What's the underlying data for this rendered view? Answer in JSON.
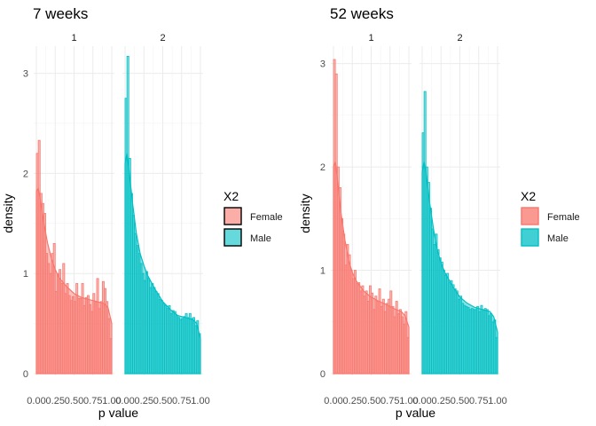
{
  "chart_data": [
    {
      "type": "histogram",
      "title": "7 weeks",
      "xlabel": "p value",
      "ylabel": "density",
      "facets": [
        "1",
        "2"
      ],
      "xlim": [
        0,
        1
      ],
      "ylim": [
        0,
        3.2
      ],
      "xticks": [
        "0.00",
        "0.25",
        "0.50",
        "0.75",
        "1.00"
      ],
      "yticks": [
        "0",
        "1",
        "2",
        "3"
      ],
      "legend": {
        "title": "X2",
        "entries": [
          "Female",
          "Male"
        ],
        "position": "right"
      },
      "series": [
        {
          "facet": "1",
          "name": "Female",
          "color": "#F8766D",
          "bin_width": 0.025,
          "bar_heights": [
            2.2,
            2.33,
            1.8,
            1.7,
            1.6,
            1.2,
            1.1,
            1.0,
            1.2,
            1.3,
            0.82,
            1.0,
            1.04,
            0.9,
            1.1,
            0.8,
            0.9,
            0.78,
            0.73,
            0.77,
            0.72,
            0.9,
            0.75,
            0.75,
            0.9,
            0.68,
            0.76,
            0.78,
            0.69,
            0.62,
            0.8,
            0.72,
            0.95,
            0.65,
            0.72,
            0.92,
            0.85,
            0.72,
            0.55,
            0.35
          ],
          "density_curve": {
            "x": [
              0,
              0.025,
              0.05,
              0.1,
              0.15,
              0.2,
              0.25,
              0.3,
              0.4,
              0.5,
              0.6,
              0.7,
              0.8,
              0.9,
              0.95,
              1.0
            ],
            "y": [
              1.82,
              1.85,
              1.75,
              1.5,
              1.3,
              1.15,
              1.04,
              0.96,
              0.87,
              0.8,
              0.76,
              0.74,
              0.72,
              0.7,
              0.66,
              0.5
            ]
          }
        },
        {
          "facet": "2",
          "name": "Male",
          "color": "#00BFC4",
          "bin_width": 0.025,
          "bar_heights": [
            2.75,
            3.17,
            2.15,
            1.8,
            1.58,
            1.4,
            1.28,
            1.2,
            1.1,
            1.0,
            0.93,
            1.02,
            0.95,
            0.86,
            0.9,
            0.86,
            0.82,
            0.8,
            0.74,
            0.73,
            0.7,
            0.68,
            0.65,
            0.68,
            0.6,
            0.63,
            0.62,
            0.58,
            0.56,
            0.54,
            0.55,
            0.57,
            0.6,
            0.56,
            0.6,
            0.55,
            0.56,
            0.48,
            0.53,
            0.4
          ],
          "density_curve": {
            "x": [
              0,
              0.025,
              0.05,
              0.1,
              0.15,
              0.2,
              0.25,
              0.3,
              0.4,
              0.5,
              0.6,
              0.7,
              0.8,
              0.9,
              0.95,
              1.0
            ],
            "y": [
              2.1,
              2.2,
              2.05,
              1.7,
              1.4,
              1.2,
              1.08,
              0.98,
              0.84,
              0.72,
              0.64,
              0.58,
              0.56,
              0.54,
              0.5,
              0.35
            ]
          }
        }
      ]
    },
    {
      "type": "histogram",
      "title": "52 weeks",
      "xlabel": "p value",
      "ylabel": "density",
      "facets": [
        "1",
        "2"
      ],
      "xlim": [
        0,
        1
      ],
      "ylim": [
        0,
        3.1
      ],
      "xticks": [
        "0.00",
        "0.25",
        "0.50",
        "0.75",
        "1.00"
      ],
      "yticks": [
        "0",
        "1",
        "2",
        "3"
      ],
      "legend": {
        "title": "X2",
        "entries": [
          "Female",
          "Male"
        ],
        "position": "right"
      },
      "series": [
        {
          "facet": "1",
          "name": "Female",
          "color": "#F8766D",
          "bin_width": 0.025,
          "bar_heights": [
            3.04,
            2.9,
            2.0,
            1.8,
            1.5,
            1.35,
            1.05,
            1.25,
            1.15,
            1.0,
            0.92,
            1.0,
            0.87,
            0.88,
            0.8,
            0.85,
            0.75,
            0.8,
            0.7,
            0.85,
            0.78,
            0.62,
            0.75,
            0.7,
            0.82,
            0.65,
            0.72,
            0.6,
            0.68,
            0.72,
            0.8,
            0.65,
            0.55,
            0.7,
            0.58,
            0.62,
            0.55,
            0.48,
            0.6,
            0.35
          ],
          "density_curve": {
            "x": [
              0,
              0.025,
              0.05,
              0.1,
              0.15,
              0.2,
              0.25,
              0.3,
              0.4,
              0.5,
              0.6,
              0.7,
              0.8,
              0.9,
              0.95,
              1.0
            ],
            "y": [
              2.0,
              2.05,
              1.9,
              1.55,
              1.3,
              1.1,
              0.98,
              0.9,
              0.8,
              0.74,
              0.7,
              0.67,
              0.63,
              0.6,
              0.56,
              0.45
            ]
          }
        },
        {
          "facet": "2",
          "name": "Male",
          "color": "#00BFC4",
          "bin_width": 0.025,
          "bar_heights": [
            2.33,
            2.73,
            2.0,
            1.85,
            1.6,
            1.4,
            1.25,
            1.35,
            1.2,
            1.12,
            1.08,
            1.0,
            0.95,
            0.97,
            0.88,
            0.9,
            0.86,
            0.82,
            0.8,
            0.72,
            0.75,
            0.68,
            0.66,
            0.65,
            0.64,
            0.62,
            0.63,
            0.62,
            0.62,
            0.65,
            0.6,
            0.66,
            0.62,
            0.63,
            0.62,
            0.56,
            0.58,
            0.5,
            0.52,
            0.35
          ],
          "density_curve": {
            "x": [
              0,
              0.025,
              0.05,
              0.1,
              0.15,
              0.2,
              0.25,
              0.3,
              0.4,
              0.5,
              0.6,
              0.7,
              0.8,
              0.9,
              0.95,
              1.0
            ],
            "y": [
              1.95,
              2.05,
              1.95,
              1.65,
              1.4,
              1.2,
              1.07,
              0.98,
              0.85,
              0.74,
              0.68,
              0.64,
              0.62,
              0.6,
              0.55,
              0.4
            ]
          }
        }
      ]
    }
  ]
}
